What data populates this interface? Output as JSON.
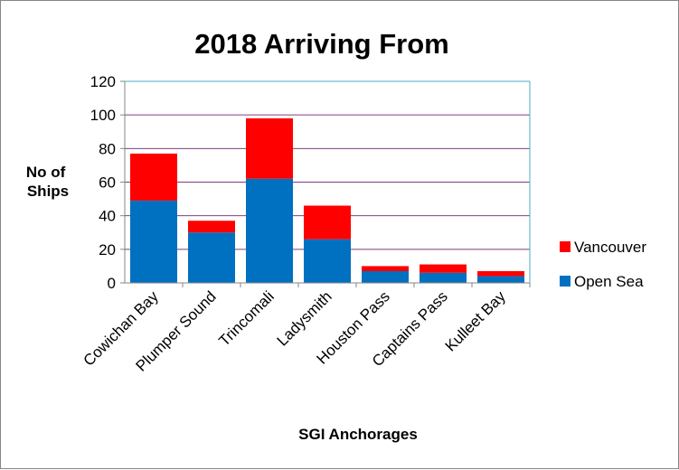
{
  "chart_data": {
    "type": "bar",
    "stacked": true,
    "title": "2018 Arriving From",
    "xlabel": "SGI Anchorages",
    "ylabel_lines": [
      "No of",
      "Ships"
    ],
    "ylim": [
      0,
      120
    ],
    "yticks": [
      0,
      20,
      40,
      60,
      80,
      100,
      120
    ],
    "grid": true,
    "legend_position": "right",
    "categories": [
      "Cowichan Bay",
      "Plumper Sound",
      "Trincomali",
      "Ladysmith",
      "Houston Pass",
      "Captains Pass",
      "Kulleet Bay"
    ],
    "series": [
      {
        "name": "Open Sea",
        "color": "#0070c0",
        "values": [
          49,
          30,
          62,
          26,
          7,
          6,
          4
        ]
      },
      {
        "name": "Vancouver",
        "color": "#ff0000",
        "values": [
          28,
          7,
          36,
          20,
          3,
          5,
          3
        ]
      }
    ],
    "legend_order": [
      "Vancouver",
      "Open Sea"
    ],
    "grid_color": "#7f3f7f",
    "axis_color": "#868686",
    "plot_border_color": "#4bacc6"
  }
}
